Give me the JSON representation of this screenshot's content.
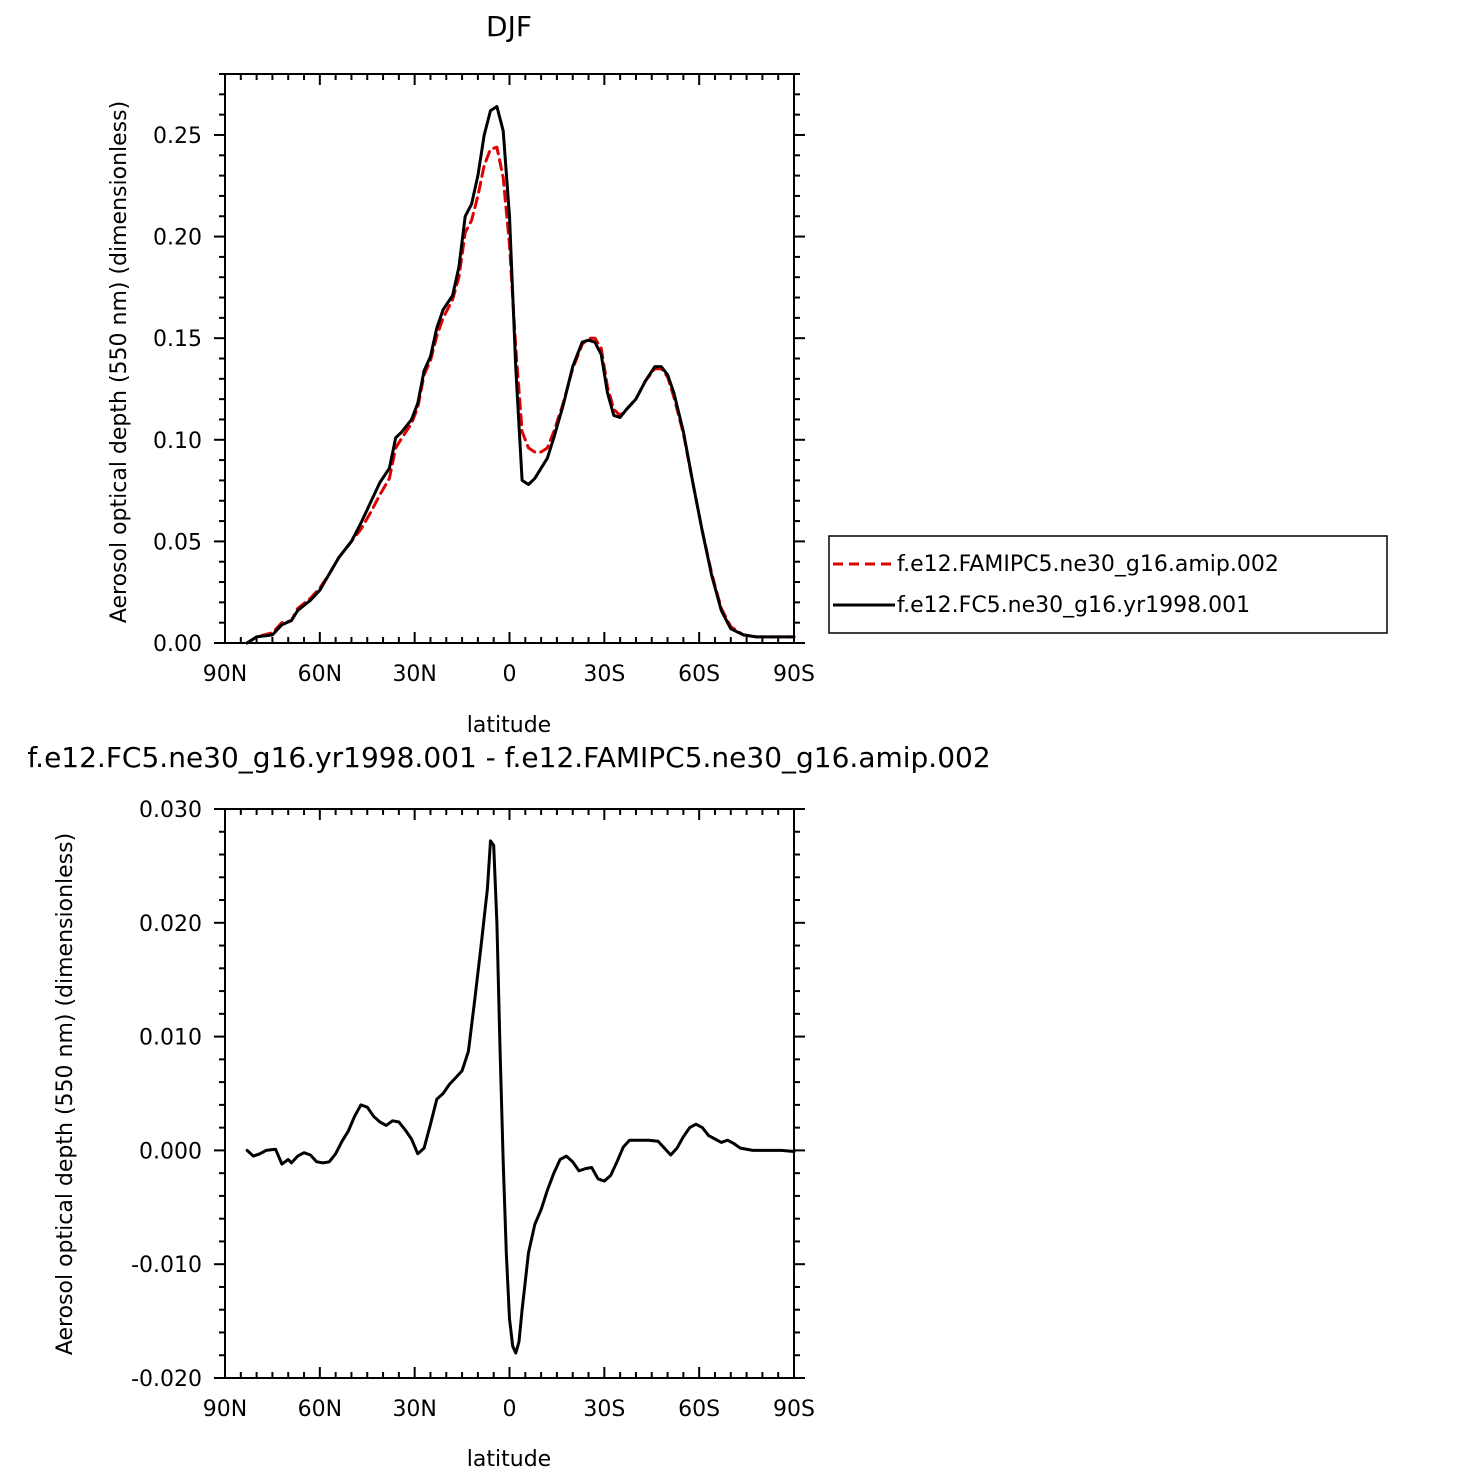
{
  "chart_data": [
    {
      "type": "line",
      "title": "DJF",
      "xlabel": "latitude",
      "ylabel": "Aerosol optical depth (550 nm) (dimensionless)",
      "xlim": [
        90,
        -90
      ],
      "ylim": [
        0,
        0.28
      ],
      "x_ticks": [
        90,
        60,
        30,
        0,
        -30,
        -60,
        -90
      ],
      "x_tick_labels": [
        "90N",
        "60N",
        "30N",
        "0",
        "30S",
        "60S",
        "90S"
      ],
      "y_ticks": [
        0,
        0.05,
        0.1,
        0.15,
        0.2,
        0.25
      ],
      "y_tick_labels": [
        "0.00",
        "0.05",
        "0.10",
        "0.15",
        "0.20",
        "0.25"
      ],
      "legend_placement": "right",
      "series": [
        {
          "name": "f.e12.FAMIPC5.ne30_g16.amip.002",
          "color": "#e00000",
          "dash": "dashed",
          "points": [
            [
              83,
              0.0
            ],
            [
              80,
              0.003
            ],
            [
              75,
              0.005
            ],
            [
              72,
              0.01
            ],
            [
              69,
              0.011
            ],
            [
              67,
              0.017
            ],
            [
              63,
              0.022
            ],
            [
              60,
              0.027
            ],
            [
              57,
              0.034
            ],
            [
              54,
              0.042
            ],
            [
              50,
              0.05
            ],
            [
              47,
              0.056
            ],
            [
              44,
              0.064
            ],
            [
              41,
              0.073
            ],
            [
              38,
              0.081
            ],
            [
              36,
              0.096
            ],
            [
              34,
              0.101
            ],
            [
              31,
              0.108
            ],
            [
              29,
              0.116
            ],
            [
              27,
              0.132
            ],
            [
              25,
              0.139
            ],
            [
              23,
              0.151
            ],
            [
              21,
              0.16
            ],
            [
              18,
              0.169
            ],
            [
              16,
              0.18
            ],
            [
              14,
              0.202
            ],
            [
              12,
              0.208
            ],
            [
              10,
              0.22
            ],
            [
              8,
              0.235
            ],
            [
              6,
              0.243
            ],
            [
              4,
              0.244
            ],
            [
              2,
              0.229
            ],
            [
              0,
              0.196
            ],
            [
              -2,
              0.145
            ],
            [
              -4,
              0.104
            ],
            [
              -6,
              0.096
            ],
            [
              -8,
              0.094
            ],
            [
              -10,
              0.094
            ],
            [
              -12,
              0.096
            ],
            [
              -14,
              0.104
            ],
            [
              -17,
              0.118
            ],
            [
              -20,
              0.135
            ],
            [
              -23,
              0.147
            ],
            [
              -25,
              0.15
            ],
            [
              -27,
              0.15
            ],
            [
              -29,
              0.145
            ],
            [
              -31,
              0.126
            ],
            [
              -33,
              0.115
            ],
            [
              -35,
              0.112
            ],
            [
              -37,
              0.115
            ],
            [
              -40,
              0.12
            ],
            [
              -43,
              0.129
            ],
            [
              -46,
              0.135
            ],
            [
              -48,
              0.135
            ],
            [
              -50,
              0.131
            ],
            [
              -52,
              0.121
            ],
            [
              -55,
              0.103
            ],
            [
              -58,
              0.079
            ],
            [
              -61,
              0.055
            ],
            [
              -64,
              0.034
            ],
            [
              -67,
              0.017
            ],
            [
              -70,
              0.008
            ],
            [
              -74,
              0.004
            ],
            [
              -78,
              0.003
            ],
            [
              -84,
              0.003
            ],
            [
              -90,
              0.003
            ]
          ]
        },
        {
          "name": "f.e12.FC5.ne30_g16.yr1998.001",
          "color": "#000000",
          "dash": "solid",
          "points": [
            [
              83,
              0.0
            ],
            [
              80,
              0.003
            ],
            [
              75,
              0.004
            ],
            [
              72,
              0.009
            ],
            [
              69,
              0.011
            ],
            [
              67,
              0.016
            ],
            [
              63,
              0.021
            ],
            [
              60,
              0.026
            ],
            [
              57,
              0.034
            ],
            [
              54,
              0.042
            ],
            [
              50,
              0.05
            ],
            [
              47,
              0.059
            ],
            [
              44,
              0.069
            ],
            [
              41,
              0.079
            ],
            [
              38,
              0.086
            ],
            [
              36,
              0.101
            ],
            [
              34,
              0.104
            ],
            [
              31,
              0.11
            ],
            [
              29,
              0.118
            ],
            [
              27,
              0.134
            ],
            [
              25,
              0.141
            ],
            [
              23,
              0.155
            ],
            [
              21,
              0.164
            ],
            [
              18,
              0.171
            ],
            [
              16,
              0.185
            ],
            [
              14,
              0.21
            ],
            [
              12,
              0.216
            ],
            [
              10,
              0.23
            ],
            [
              8,
              0.25
            ],
            [
              6,
              0.262
            ],
            [
              4,
              0.264
            ],
            [
              2,
              0.252
            ],
            [
              0,
              0.21
            ],
            [
              -2,
              0.135
            ],
            [
              -4,
              0.08
            ],
            [
              -6,
              0.078
            ],
            [
              -8,
              0.081
            ],
            [
              -10,
              0.086
            ],
            [
              -12,
              0.091
            ],
            [
              -14,
              0.101
            ],
            [
              -17,
              0.117
            ],
            [
              -20,
              0.136
            ],
            [
              -23,
              0.148
            ],
            [
              -25,
              0.149
            ],
            [
              -27,
              0.148
            ],
            [
              -29,
              0.142
            ],
            [
              -31,
              0.123
            ],
            [
              -33,
              0.112
            ],
            [
              -35,
              0.111
            ],
            [
              -37,
              0.115
            ],
            [
              -40,
              0.12
            ],
            [
              -43,
              0.129
            ],
            [
              -46,
              0.136
            ],
            [
              -48,
              0.136
            ],
            [
              -50,
              0.132
            ],
            [
              -52,
              0.123
            ],
            [
              -55,
              0.104
            ],
            [
              -58,
              0.079
            ],
            [
              -61,
              0.055
            ],
            [
              -64,
              0.033
            ],
            [
              -67,
              0.016
            ],
            [
              -70,
              0.007
            ],
            [
              -74,
              0.004
            ],
            [
              -78,
              0.003
            ],
            [
              -84,
              0.003
            ],
            [
              -90,
              0.003
            ]
          ]
        }
      ]
    },
    {
      "type": "line",
      "title": "f.e12.FC5.ne30_g16.yr1998.001 - f.e12.FAMIPC5.ne30_g16.amip.002",
      "xlabel": "latitude",
      "ylabel": "Aerosol optical depth (550 nm) (dimensionless)",
      "xlim": [
        90,
        -90
      ],
      "ylim": [
        -0.02,
        0.03
      ],
      "x_ticks": [
        90,
        60,
        30,
        0,
        -30,
        -60,
        -90
      ],
      "x_tick_labels": [
        "90N",
        "60N",
        "30N",
        "0",
        "30S",
        "60S",
        "90S"
      ],
      "y_ticks": [
        -0.02,
        -0.01,
        0.0,
        0.01,
        0.02,
        0.03
      ],
      "y_tick_labels": [
        "-0.020",
        "-0.010",
        "0.000",
        "0.010",
        "0.020",
        "0.030"
      ],
      "series": [
        {
          "color": "#000000",
          "dash": "solid",
          "points": [
            [
              83,
              0.0
            ],
            [
              81,
              -0.0005
            ],
            [
              79,
              -0.0003
            ],
            [
              77,
              0.0
            ],
            [
              74,
              0.0001
            ],
            [
              72,
              -0.0012
            ],
            [
              70,
              -0.0008
            ],
            [
              69,
              -0.0011
            ],
            [
              67,
              -0.0005
            ],
            [
              65,
              -0.0002
            ],
            [
              63,
              -0.0004
            ],
            [
              61,
              -0.001
            ],
            [
              59,
              -0.0011
            ],
            [
              57,
              -0.001
            ],
            [
              55,
              -0.0003
            ],
            [
              53,
              0.0008
            ],
            [
              51,
              0.0017
            ],
            [
              49,
              0.003
            ],
            [
              47,
              0.004
            ],
            [
              45,
              0.0038
            ],
            [
              43,
              0.003
            ],
            [
              41,
              0.0025
            ],
            [
              39,
              0.0022
            ],
            [
              37,
              0.0026
            ],
            [
              35,
              0.0025
            ],
            [
              33,
              0.0018
            ],
            [
              31,
              0.001
            ],
            [
              29,
              -0.0003
            ],
            [
              27,
              0.0002
            ],
            [
              25,
              0.0023
            ],
            [
              23,
              0.0045
            ],
            [
              21,
              0.005
            ],
            [
              19,
              0.0058
            ],
            [
              17,
              0.0064
            ],
            [
              15,
              0.007
            ],
            [
              13,
              0.0087
            ],
            [
              11,
              0.0132
            ],
            [
              9,
              0.018
            ],
            [
              7,
              0.023
            ],
            [
              6,
              0.0272
            ],
            [
              5,
              0.0268
            ],
            [
              4,
              0.02
            ],
            [
              3,
              0.009
            ],
            [
              2,
              -0.001
            ],
            [
              1,
              -0.009
            ],
            [
              0,
              -0.0148
            ],
            [
              -1,
              -0.0172
            ],
            [
              -2,
              -0.0178
            ],
            [
              -3,
              -0.0168
            ],
            [
              -4,
              -0.014
            ],
            [
              -6,
              -0.009
            ],
            [
              -8,
              -0.0065
            ],
            [
              -10,
              -0.0052
            ],
            [
              -12,
              -0.0035
            ],
            [
              -14,
              -0.002
            ],
            [
              -16,
              -0.0008
            ],
            [
              -18,
              -0.0005
            ],
            [
              -20,
              -0.001
            ],
            [
              -22,
              -0.0018
            ],
            [
              -24,
              -0.0016
            ],
            [
              -26,
              -0.0015
            ],
            [
              -28,
              -0.0025
            ],
            [
              -30,
              -0.0027
            ],
            [
              -32,
              -0.0022
            ],
            [
              -34,
              -0.001
            ],
            [
              -36,
              0.0003
            ],
            [
              -38,
              0.0009
            ],
            [
              -41,
              0.0009
            ],
            [
              -44,
              0.0009
            ],
            [
              -47,
              0.0008
            ],
            [
              -49,
              0.0002
            ],
            [
              -51,
              -0.0004
            ],
            [
              -53,
              0.0002
            ],
            [
              -55,
              0.0012
            ],
            [
              -57,
              0.002
            ],
            [
              -59,
              0.0023
            ],
            [
              -61,
              0.002
            ],
            [
              -63,
              0.0013
            ],
            [
              -65,
              0.001
            ],
            [
              -67,
              0.0007
            ],
            [
              -69,
              0.0009
            ],
            [
              -71,
              0.0006
            ],
            [
              -73,
              0.0002
            ],
            [
              -77,
              0.0
            ],
            [
              -82,
              0.0
            ],
            [
              -86,
              0.0
            ],
            [
              -90,
              -0.0001
            ]
          ]
        }
      ]
    }
  ]
}
